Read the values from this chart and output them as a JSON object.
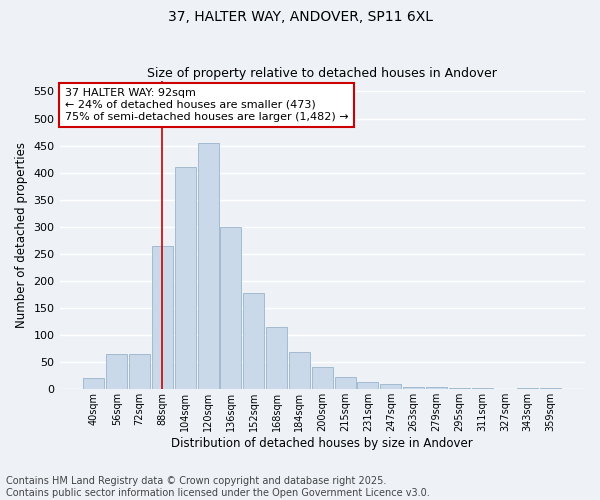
{
  "title": "37, HALTER WAY, ANDOVER, SP11 6XL",
  "subtitle": "Size of property relative to detached houses in Andover",
  "xlabel": "Distribution of detached houses by size in Andover",
  "ylabel": "Number of detached properties",
  "bar_labels": [
    "40sqm",
    "56sqm",
    "72sqm",
    "88sqm",
    "104sqm",
    "120sqm",
    "136sqm",
    "152sqm",
    "168sqm",
    "184sqm",
    "200sqm",
    "215sqm",
    "231sqm",
    "247sqm",
    "263sqm",
    "279sqm",
    "295sqm",
    "311sqm",
    "327sqm",
    "343sqm",
    "359sqm"
  ],
  "bar_values": [
    20,
    65,
    65,
    265,
    410,
    455,
    300,
    178,
    115,
    68,
    42,
    23,
    13,
    10,
    5,
    5,
    2,
    2,
    0,
    2,
    2
  ],
  "bar_color": "#c9d9ea",
  "bar_edge_color": "#9ab5cc",
  "vline_x": 3,
  "vline_color": "#cc0000",
  "annotation_text": "37 HALTER WAY: 92sqm\n← 24% of detached houses are smaller (473)\n75% of semi-detached houses are larger (1,482) →",
  "annotation_box_color": "#ffffff",
  "annotation_box_edge": "#cc0000",
  "ylim": [
    0,
    570
  ],
  "yticks": [
    0,
    50,
    100,
    150,
    200,
    250,
    300,
    350,
    400,
    450,
    500,
    550
  ],
  "bg_color": "#eef2f7",
  "grid_color": "#ffffff",
  "footer": "Contains HM Land Registry data © Crown copyright and database right 2025.\nContains public sector information licensed under the Open Government Licence v3.0.",
  "title_fontsize": 10,
  "subtitle_fontsize": 9,
  "footer_fontsize": 7,
  "annot_fontsize": 8
}
